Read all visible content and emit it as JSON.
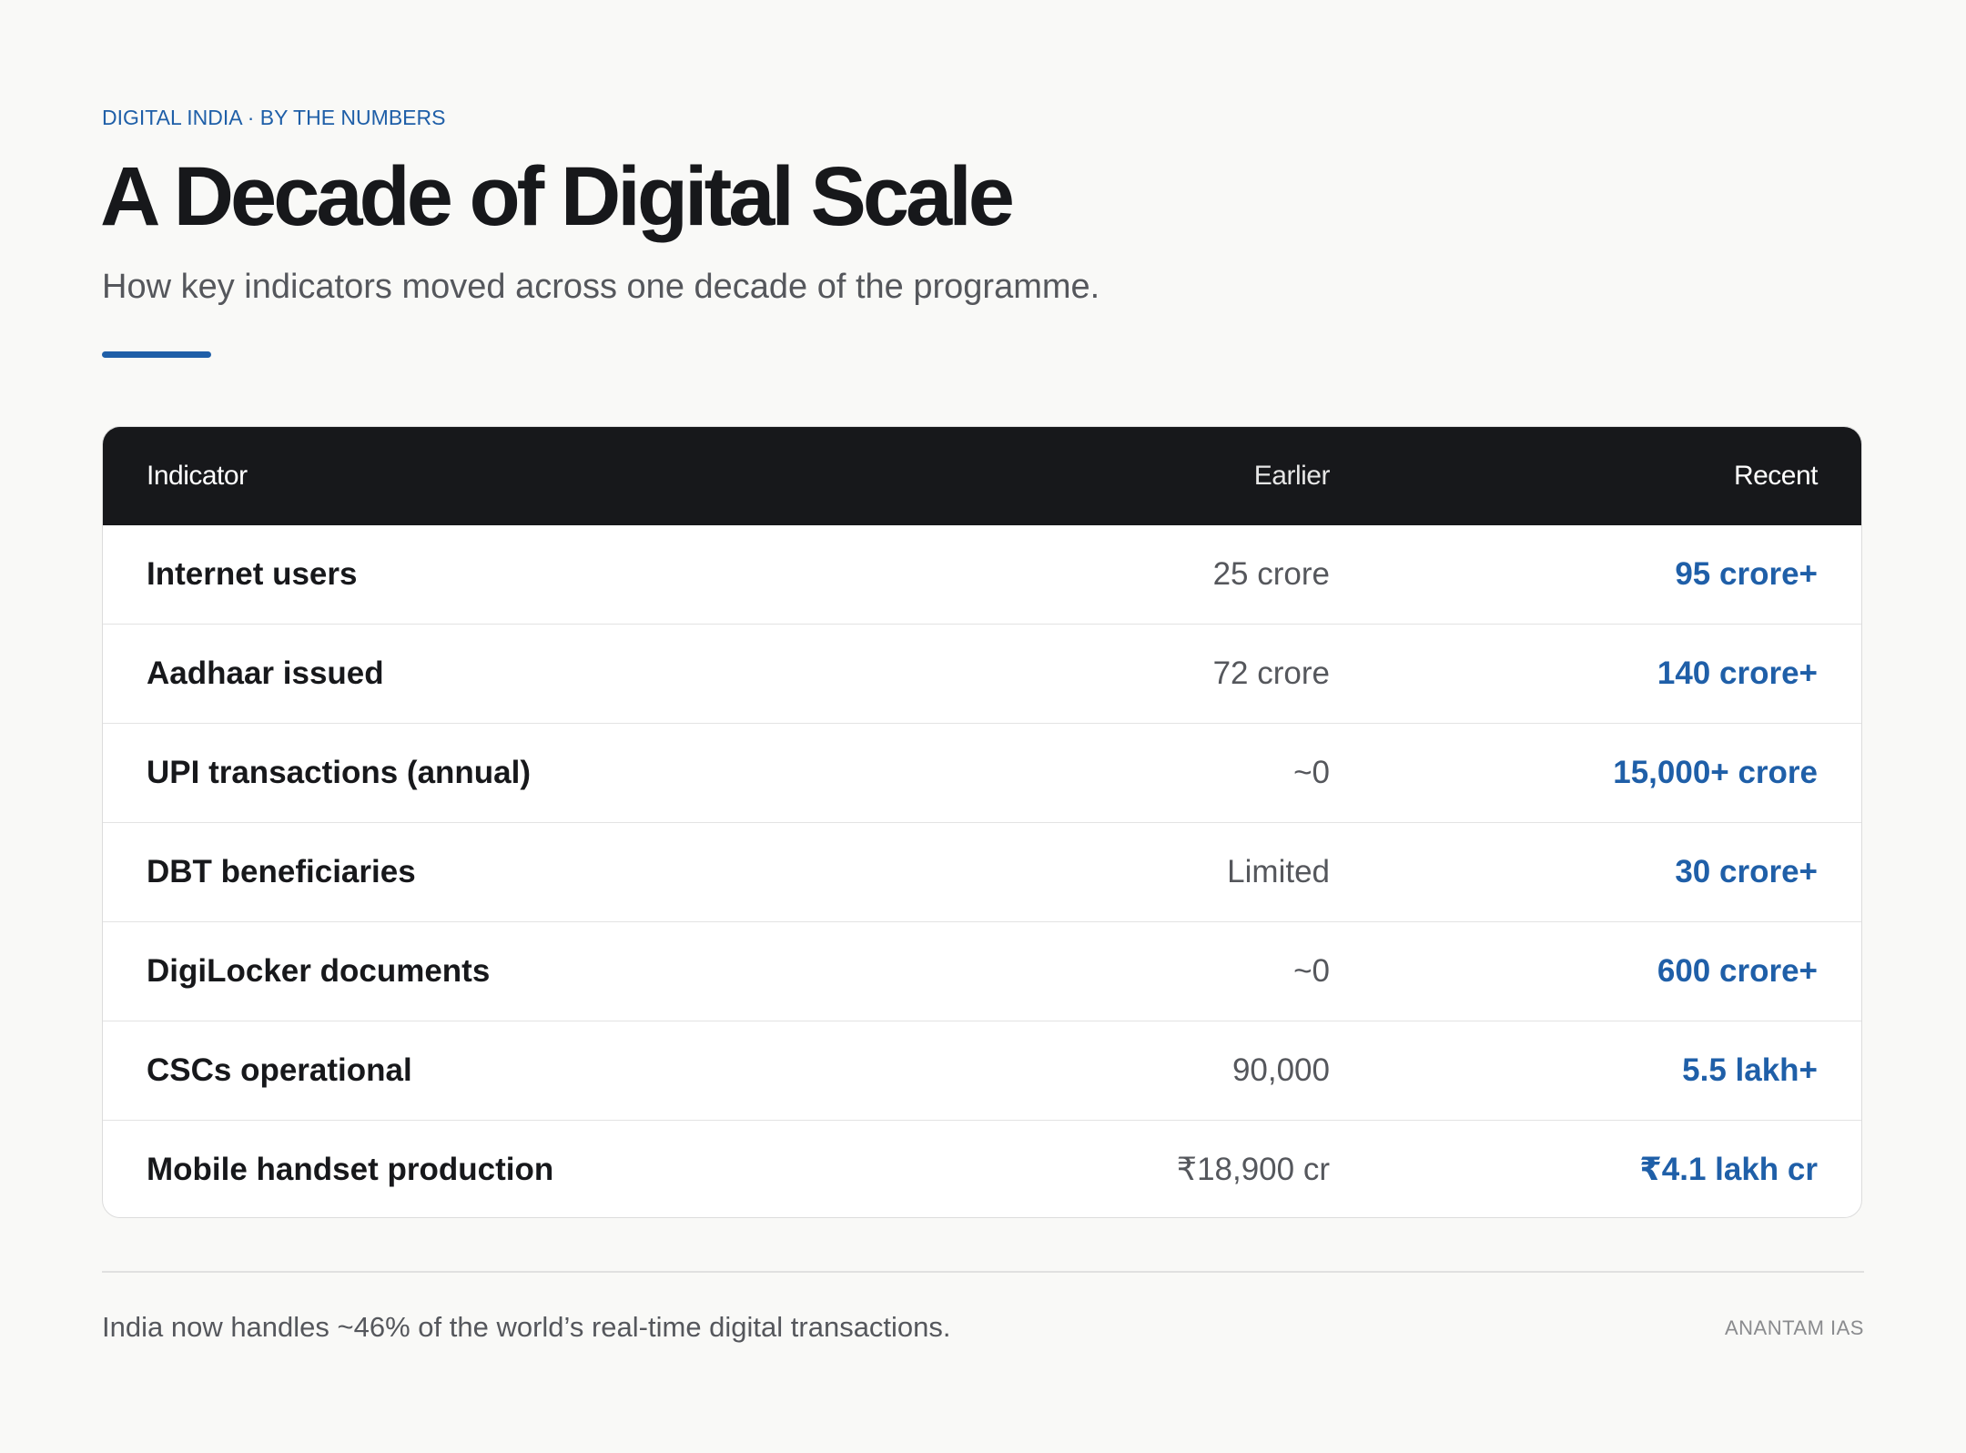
{
  "header": {
    "eyebrow": "DIGITAL INDIA · BY THE NUMBERS",
    "title": "A Decade of Digital Scale",
    "subtitle": "How key indicators moved across one decade of the programme."
  },
  "table": {
    "columns": [
      "Indicator",
      "Earlier",
      "Recent"
    ],
    "rows": [
      {
        "indicator": "Internet users",
        "earlier": "25 crore",
        "recent": "95 crore+"
      },
      {
        "indicator": "Aadhaar issued",
        "earlier": "72 crore",
        "recent": "140 crore+"
      },
      {
        "indicator": "UPI transactions (annual)",
        "earlier": "~0",
        "recent": "15,000+ crore"
      },
      {
        "indicator": "DBT beneficiaries",
        "earlier": "Limited",
        "recent": "30 crore+"
      },
      {
        "indicator": "DigiLocker documents",
        "earlier": "~0",
        "recent": "600 crore+"
      },
      {
        "indicator": "CSCs operational",
        "earlier": "90,000",
        "recent": "5.5 lakh+"
      },
      {
        "indicator": "Mobile handset production",
        "earlier": "₹18,900 cr",
        "recent": "₹4.1 lakh cr"
      }
    ]
  },
  "footer": {
    "note": "India now handles ~46% of the world’s real-time digital transactions.",
    "brand": "ANANTAM IAS"
  },
  "colors": {
    "accent": "#1f5fa8",
    "header_bg": "#17181b",
    "page_bg": "#f9f9f7"
  }
}
